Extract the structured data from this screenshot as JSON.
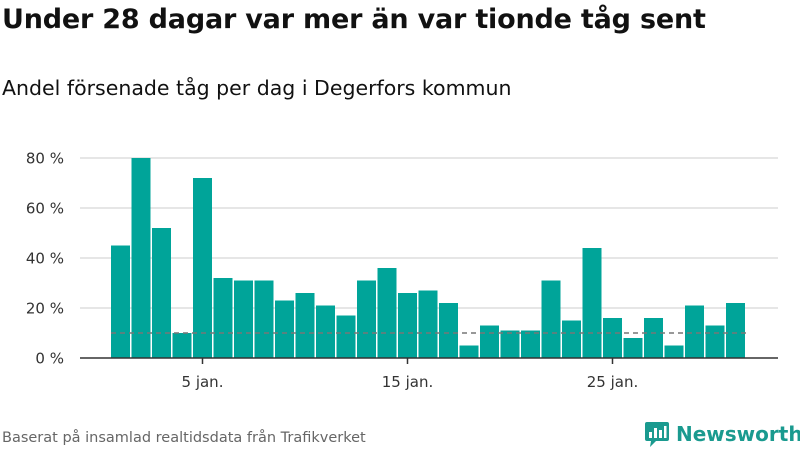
{
  "title": "Under 28 dagar var mer än var tionde tåg sent",
  "subtitle": "Andel försenade tåg per dag i Degerfors kommun",
  "source": "Baserat på insamlad realtidsdata från Trafikverket",
  "brand": {
    "name": "Newsworthy",
    "icon": "newsworthy-logo-icon",
    "color": "#1a9a8f"
  },
  "colors": {
    "bar": "#00a499",
    "grid": "#dddddd",
    "reference": "#777777",
    "axis": "#333333"
  },
  "chart_data": {
    "type": "bar",
    "x": [
      1,
      2,
      3,
      4,
      5,
      6,
      7,
      8,
      9,
      10,
      11,
      12,
      13,
      14,
      15,
      16,
      17,
      18,
      19,
      20,
      21,
      22,
      23,
      24,
      25,
      26,
      27,
      28,
      29,
      30,
      31
    ],
    "values": [
      45,
      80,
      52,
      10,
      72,
      32,
      31,
      31,
      23,
      26,
      21,
      17,
      31,
      36,
      26,
      27,
      22,
      5,
      13,
      11,
      11,
      31,
      15,
      44,
      16,
      8,
      16,
      5,
      21,
      13,
      22
    ],
    "reference_line": {
      "value": 10,
      "style": "dashed"
    },
    "ylim": [
      0,
      80
    ],
    "yticks": [
      {
        "value": 0,
        "label": "0 %"
      },
      {
        "value": 20,
        "label": "20 %"
      },
      {
        "value": 40,
        "label": "40 %"
      },
      {
        "value": 60,
        "label": "60 %"
      },
      {
        "value": 80,
        "label": "80 %"
      }
    ],
    "xticks": [
      {
        "value": 5,
        "label": "5 jan."
      },
      {
        "value": 15,
        "label": "15 jan."
      },
      {
        "value": 25,
        "label": "25 jan."
      }
    ],
    "grid": true,
    "xlabel": "",
    "ylabel": ""
  }
}
